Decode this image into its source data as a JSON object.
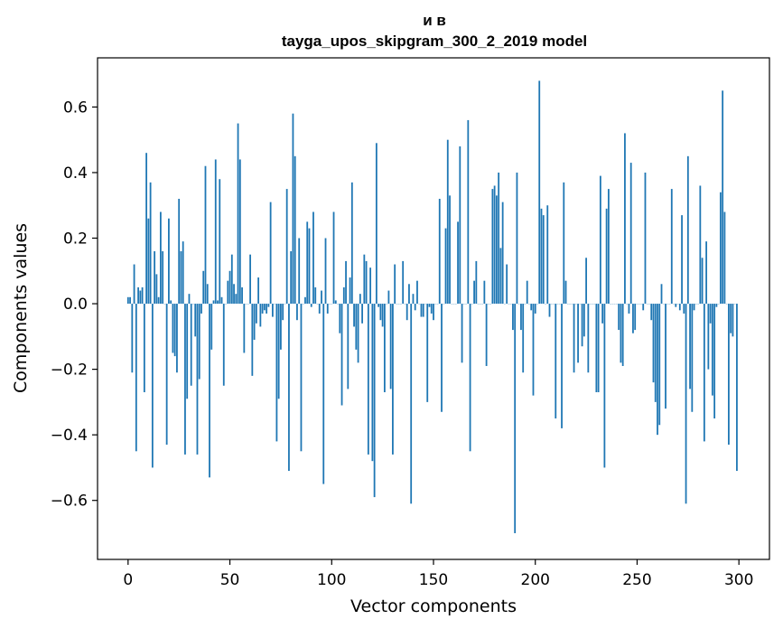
{
  "chart_data": {
    "type": "bar",
    "title": "и в",
    "subtitle": "tayga_upos_skipgram_300_2_2019 model",
    "xlabel": "Vector components",
    "ylabel": "Components values",
    "xlim": [
      -15,
      315
    ],
    "ylim": [
      -0.78,
      0.75
    ],
    "xticks": [
      0,
      50,
      100,
      150,
      200,
      250,
      300
    ],
    "xtick_labels": [
      "0",
      "50",
      "100",
      "150",
      "200",
      "250",
      "300"
    ],
    "yticks": [
      -0.6,
      -0.4,
      -0.2,
      0.0,
      0.2,
      0.4,
      0.6
    ],
    "ytick_labels": [
      "−0.6",
      "−0.4",
      "−0.2",
      "0.0",
      "0.2",
      "0.4",
      "0.6"
    ],
    "grid": false,
    "bar_color": "#1f77b4",
    "x": "component index 0..299",
    "values": [
      0.02,
      0.02,
      -0.21,
      0.12,
      -0.45,
      0.05,
      0.04,
      0.05,
      -0.27,
      0.46,
      0.26,
      0.37,
      -0.5,
      0.16,
      0.09,
      0.02,
      0.28,
      0.16,
      0.0,
      -0.43,
      0.26,
      0.01,
      -0.15,
      -0.16,
      -0.21,
      0.32,
      0.16,
      0.19,
      -0.46,
      -0.29,
      0.03,
      -0.25,
      0.0,
      -0.1,
      -0.46,
      -0.23,
      -0.03,
      0.1,
      0.42,
      0.06,
      -0.53,
      -0.14,
      0.01,
      0.44,
      0.01,
      0.38,
      0.02,
      -0.25,
      0.0,
      0.07,
      0.1,
      0.15,
      0.06,
      0.03,
      0.55,
      0.44,
      0.05,
      -0.15,
      0.0,
      0.0,
      0.15,
      -0.22,
      -0.11,
      -0.06,
      0.08,
      -0.07,
      -0.03,
      -0.02,
      -0.03,
      -0.01,
      0.31,
      -0.04,
      0.0,
      -0.42,
      -0.29,
      -0.14,
      -0.05,
      0.0,
      0.35,
      -0.51,
      0.16,
      0.58,
      0.45,
      -0.05,
      0.2,
      -0.45,
      0.0,
      0.02,
      0.25,
      0.23,
      -0.01,
      0.28,
      0.05,
      0.0,
      -0.03,
      0.04,
      -0.55,
      0.2,
      -0.03,
      0.0,
      0.0,
      0.28,
      0.01,
      0.0,
      -0.09,
      -0.31,
      0.05,
      0.13,
      -0.26,
      0.08,
      0.37,
      -0.07,
      -0.14,
      -0.18,
      0.03,
      -0.06,
      0.15,
      0.13,
      -0.46,
      0.11,
      -0.48,
      -0.59,
      0.49,
      -0.01,
      -0.05,
      -0.07,
      -0.27,
      0.0,
      0.04,
      -0.26,
      -0.46,
      0.12,
      0.0,
      0.0,
      0.0,
      0.13,
      0.0,
      -0.05,
      0.06,
      -0.61,
      0.03,
      -0.02,
      0.07,
      0.0,
      -0.04,
      -0.04,
      0.0,
      -0.3,
      -0.01,
      -0.03,
      -0.05,
      0.0,
      0.0,
      0.32,
      -0.33,
      0.0,
      0.23,
      0.5,
      0.33,
      0.0,
      0.0,
      0.0,
      0.25,
      0.48,
      -0.18,
      0.0,
      0.0,
      0.56,
      -0.45,
      0.0,
      0.07,
      0.13,
      0.0,
      0.0,
      0.0,
      0.07,
      -0.19,
      0.0,
      0.0,
      0.35,
      0.36,
      0.33,
      0.4,
      0.17,
      0.31,
      0.0,
      0.12,
      0.0,
      0.0,
      -0.08,
      -0.7,
      0.4,
      0.0,
      -0.08,
      -0.21,
      0.0,
      0.07,
      0.0,
      -0.02,
      -0.28,
      -0.03,
      0.0,
      0.68,
      0.29,
      0.27,
      0.0,
      0.3,
      -0.04,
      0.0,
      0.0,
      -0.35,
      0.0,
      0.0,
      -0.38,
      0.37,
      0.07,
      0.0,
      0.0,
      0.0,
      -0.21,
      0.0,
      -0.18,
      0.0,
      -0.13,
      -0.1,
      0.14,
      -0.21,
      0.0,
      0.0,
      0.0,
      -0.27,
      -0.27,
      0.39,
      -0.06,
      -0.5,
      0.29,
      0.35,
      0.0,
      0.0,
      0.0,
      0.0,
      -0.08,
      -0.18,
      -0.19,
      0.52,
      0.0,
      -0.03,
      0.43,
      -0.09,
      -0.08,
      0.0,
      0.0,
      0.0,
      -0.02,
      0.4,
      0.0,
      0.0,
      -0.05,
      -0.24,
      -0.3,
      -0.4,
      -0.37,
      0.06,
      0.0,
      -0.32,
      0.0,
      0.0,
      0.35,
      0.0,
      -0.01,
      0.0,
      -0.02,
      0.27,
      -0.03,
      -0.61,
      0.45,
      -0.26,
      -0.33,
      -0.02,
      0.0,
      0.0,
      0.36,
      0.14,
      -0.42,
      0.19,
      -0.2,
      -0.06,
      -0.28,
      -0.35,
      -0.01,
      0.0,
      0.34,
      0.65,
      0.28,
      0.0,
      -0.43,
      -0.09,
      -0.1,
      0.0,
      -0.51
    ]
  }
}
